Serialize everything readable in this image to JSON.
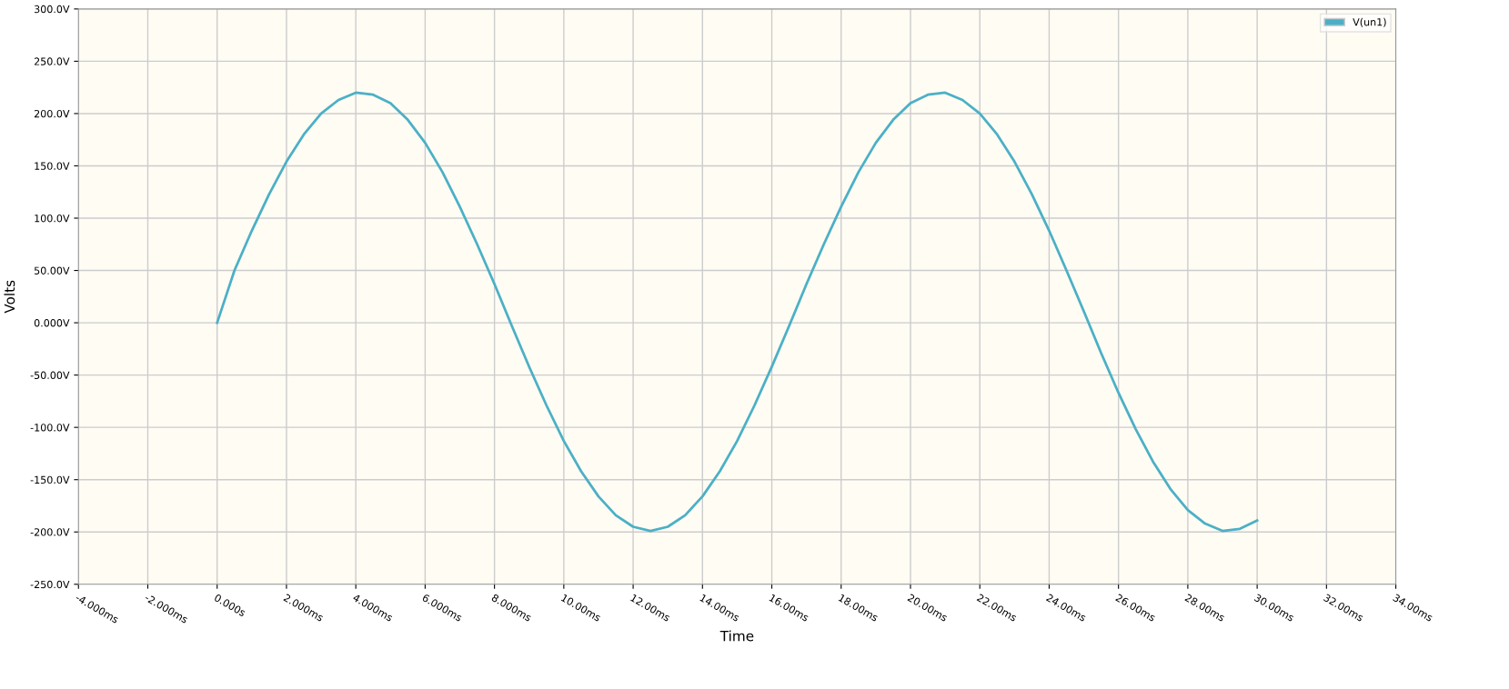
{
  "chart_data": {
    "type": "line",
    "xlabel": "Time",
    "ylabel": "Volts",
    "xlim": [
      -4,
      34
    ],
    "ylim": [
      -250,
      300
    ],
    "xticks": [
      {
        "value": -4,
        "label": "-4.000ms"
      },
      {
        "value": -2,
        "label": "-2.000ms"
      },
      {
        "value": 0,
        "label": "0.000s"
      },
      {
        "value": 2,
        "label": "2.000ms"
      },
      {
        "value": 4,
        "label": "4.000ms"
      },
      {
        "value": 6,
        "label": "6.000ms"
      },
      {
        "value": 8,
        "label": "8.000ms"
      },
      {
        "value": 10,
        "label": "10.00ms"
      },
      {
        "value": 12,
        "label": "12.00ms"
      },
      {
        "value": 14,
        "label": "14.00ms"
      },
      {
        "value": 16,
        "label": "16.00ms"
      },
      {
        "value": 18,
        "label": "18.00ms"
      },
      {
        "value": 20,
        "label": "20.00ms"
      },
      {
        "value": 22,
        "label": "22.00ms"
      },
      {
        "value": 24,
        "label": "24.00ms"
      },
      {
        "value": 26,
        "label": "26.00ms"
      },
      {
        "value": 28,
        "label": "28.00ms"
      },
      {
        "value": 30,
        "label": "30.00ms"
      },
      {
        "value": 32,
        "label": "32.00ms"
      },
      {
        "value": 34,
        "label": "34.00ms"
      }
    ],
    "yticks": [
      {
        "value": 300,
        "label": "300.0V"
      },
      {
        "value": 250,
        "label": "250.0V"
      },
      {
        "value": 200,
        "label": "200.0V"
      },
      {
        "value": 150,
        "label": "150.0V"
      },
      {
        "value": 100,
        "label": "100.0V"
      },
      {
        "value": 50,
        "label": "50.00V"
      },
      {
        "value": 0,
        "label": "0.000V"
      },
      {
        "value": -50,
        "label": "-50.00V"
      },
      {
        "value": -100,
        "label": "-100.0V"
      },
      {
        "value": -150,
        "label": "-150.0V"
      },
      {
        "value": -200,
        "label": "-200.0V"
      },
      {
        "value": -250,
        "label": "-250.0V"
      }
    ],
    "grid": true,
    "legend": "top right",
    "marker": "none",
    "line_style": "solid",
    "x": [
      0,
      0.5,
      1,
      1.5,
      2,
      2.5,
      3,
      3.5,
      4,
      4.5,
      5,
      5.5,
      6,
      6.5,
      7,
      7.5,
      8,
      8.5,
      9,
      9.5,
      10,
      10.5,
      11,
      11.5,
      12,
      12.5,
      13,
      13.5,
      14,
      14.5,
      15,
      15.5,
      16,
      16.5,
      17,
      17.5,
      18,
      18.5,
      19,
      19.5,
      20,
      20.5,
      21,
      21.5,
      22,
      22.5,
      23,
      23.5,
      24,
      24.5,
      25,
      25.5,
      26,
      26.5,
      27,
      27.5,
      28,
      28.5,
      29,
      29.5,
      30
    ],
    "series": [
      {
        "name": "V(un1)",
        "color": "#4bb0c6",
        "values": [
          0,
          50,
          88,
          123,
          154,
          180,
          200,
          213,
          220,
          218,
          210,
          194,
          172,
          144,
          111,
          75,
          37,
          -3,
          -42,
          -79,
          -113,
          -142,
          -166,
          -184,
          -195,
          -199,
          -195,
          -184,
          -166,
          -142,
          -113,
          -79,
          -42,
          -3,
          37,
          75,
          111,
          144,
          172,
          194,
          210,
          218,
          220,
          213,
          200,
          180,
          154,
          123,
          88,
          50,
          11,
          -29,
          -67,
          -102,
          -133,
          -159,
          -179,
          -192,
          -199,
          -197,
          -189
        ]
      }
    ]
  }
}
